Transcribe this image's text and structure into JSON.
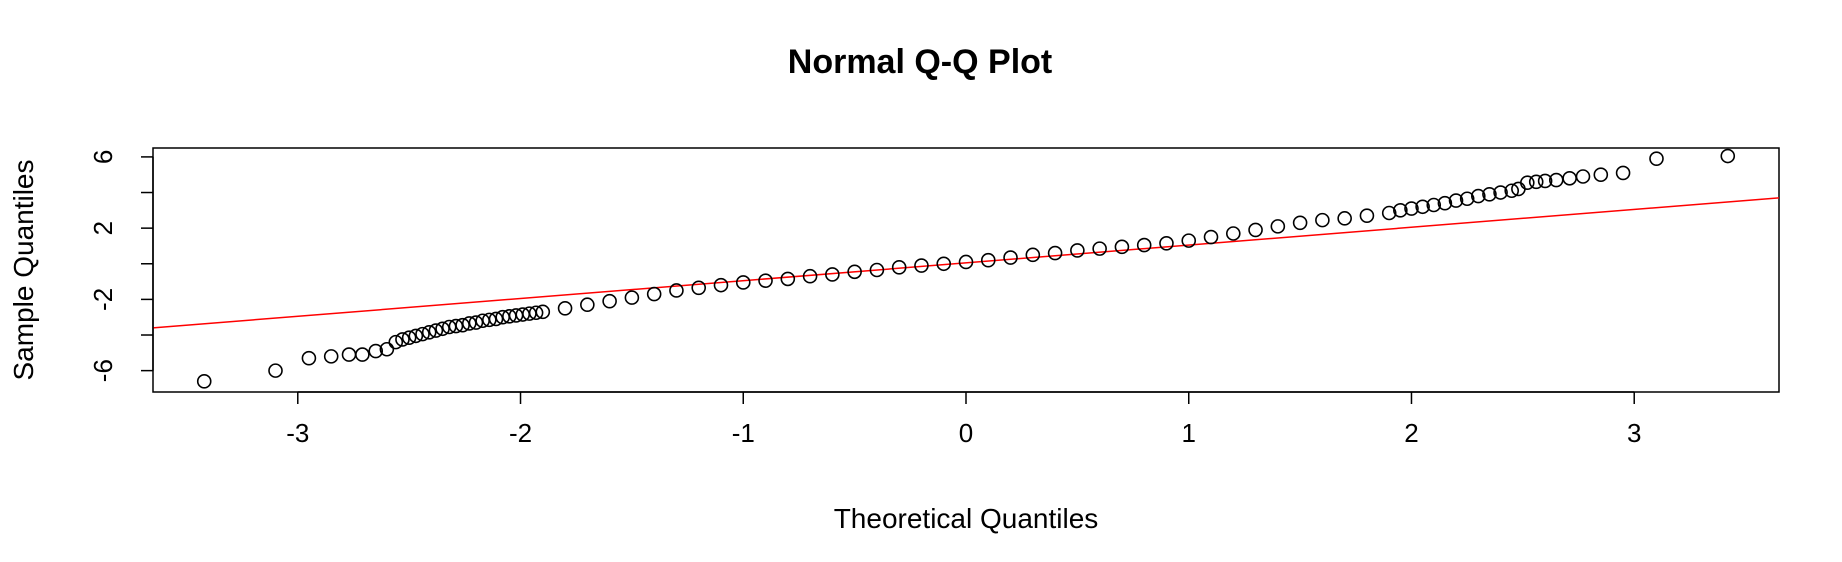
{
  "chart_data": {
    "type": "scatter",
    "title": "Normal Q-Q Plot",
    "xlabel": "Theoretical Quantiles",
    "ylabel": "Sample Quantiles",
    "xlim": [
      -3.65,
      3.65
    ],
    "ylim": [
      -7.2,
      6.5
    ],
    "x_ticks": [
      -3,
      -2,
      -1,
      0,
      1,
      2,
      3
    ],
    "x_tick_labels": [
      "-3",
      "-2",
      "-1",
      "0",
      "1",
      "2",
      "3"
    ],
    "y_ticks": [
      -6,
      -4,
      -2,
      0,
      2,
      4,
      6
    ],
    "y_tick_labels": [
      "-6",
      "",
      "-2",
      "",
      "2",
      "",
      "6"
    ],
    "grid": false,
    "point_color": "#000000",
    "reference_line": {
      "color": "#ff0000",
      "intercept": 0.05,
      "slope": 1.0
    },
    "series": [
      {
        "x": [
          -3.42,
          -3.1,
          -2.95,
          -2.85,
          -2.77,
          -2.71,
          -2.65,
          -2.6,
          -2.56,
          -2.53,
          -2.5,
          -2.47,
          -2.44,
          -2.41,
          -2.38,
          -2.35,
          -2.32,
          -2.29,
          -2.26,
          -2.23,
          -2.2,
          -2.17,
          -2.14,
          -2.11,
          -2.08,
          -2.05,
          -2.02,
          -1.99,
          -1.96,
          -1.93,
          -1.9,
          -1.8,
          -1.7,
          -1.6,
          -1.5,
          -1.4,
          -1.3,
          -1.2,
          -1.1,
          -1.0,
          -0.9,
          -0.8,
          -0.7,
          -0.6,
          -0.5,
          -0.4,
          -0.3,
          -0.2,
          -0.1,
          0.0,
          0.1,
          0.2,
          0.3,
          0.4,
          0.5,
          0.6,
          0.7,
          0.8,
          0.9,
          1.0,
          1.1,
          1.2,
          1.3,
          1.4,
          1.5,
          1.6,
          1.7,
          1.8,
          1.9,
          1.95,
          2.0,
          2.05,
          2.1,
          2.15,
          2.2,
          2.25,
          2.3,
          2.35,
          2.4,
          2.45,
          2.48,
          2.52,
          2.56,
          2.6,
          2.65,
          2.71,
          2.77,
          2.85,
          2.95,
          3.1,
          3.42
        ],
        "y": [
          -6.6,
          -6.0,
          -5.3,
          -5.2,
          -5.1,
          -5.1,
          -4.9,
          -4.8,
          -4.4,
          -4.25,
          -4.15,
          -4.05,
          -3.95,
          -3.85,
          -3.75,
          -3.65,
          -3.55,
          -3.5,
          -3.45,
          -3.35,
          -3.3,
          -3.2,
          -3.15,
          -3.1,
          -3.0,
          -2.95,
          -2.9,
          -2.85,
          -2.8,
          -2.75,
          -2.7,
          -2.5,
          -2.3,
          -2.1,
          -1.9,
          -1.7,
          -1.5,
          -1.35,
          -1.2,
          -1.05,
          -0.95,
          -0.85,
          -0.7,
          -0.6,
          -0.45,
          -0.35,
          -0.2,
          -0.1,
          0.0,
          0.1,
          0.2,
          0.35,
          0.5,
          0.6,
          0.75,
          0.85,
          0.95,
          1.05,
          1.15,
          1.3,
          1.5,
          1.7,
          1.9,
          2.1,
          2.3,
          2.45,
          2.55,
          2.7,
          2.85,
          3.0,
          3.1,
          3.2,
          3.3,
          3.4,
          3.55,
          3.65,
          3.8,
          3.9,
          4.0,
          4.1,
          4.2,
          4.55,
          4.6,
          4.65,
          4.7,
          4.8,
          4.9,
          5.0,
          5.1,
          5.9,
          6.05
        ]
      }
    ]
  }
}
